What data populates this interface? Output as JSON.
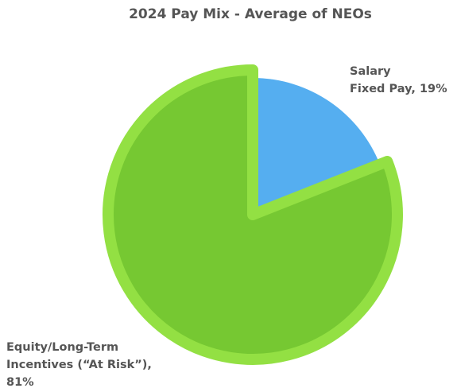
{
  "chart_data": {
    "type": "pie",
    "title": "2024 Pay Mix - Average of NEOs",
    "values": [
      19,
      81
    ],
    "value_labels": [
      [
        "Salary",
        "Fixed Pay, 19%"
      ],
      [
        "Equity/Long-Term",
        "Incentives (“At Risk”),",
        "81%"
      ]
    ],
    "colors": [
      "#55aef0",
      "#76c832"
    ],
    "outline_color": "#93e043"
  }
}
